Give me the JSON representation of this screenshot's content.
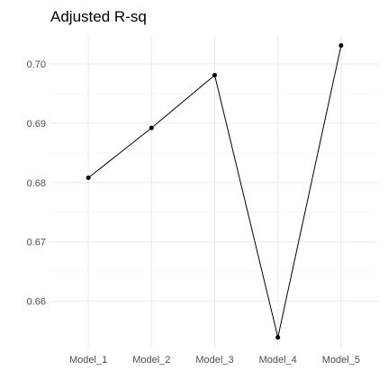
{
  "chart_data": {
    "type": "line",
    "title": "Adjusted R-sq",
    "xlabel": "",
    "ylabel": "",
    "categories": [
      "Model_1",
      "Model_2",
      "Model_3",
      "Model_4",
      "Model_5"
    ],
    "values": [
      0.6808,
      0.6892,
      0.6981,
      0.6539,
      0.7031
    ],
    "ylim": [
      0.6522,
      0.7047
    ],
    "yticks": [
      0.66,
      0.67,
      0.68,
      0.69,
      0.7
    ],
    "ytick_labels": [
      "0.66",
      "0.67",
      "0.68",
      "0.69",
      "0.70"
    ],
    "grid": true,
    "legend": "none",
    "colors": {
      "line": "#000000",
      "point": "#000000",
      "grid_major": "#ebebeb",
      "grid_minor": "#f5f5f5",
      "tick_text": "#4d4d4d",
      "background": "#ffffff"
    }
  }
}
